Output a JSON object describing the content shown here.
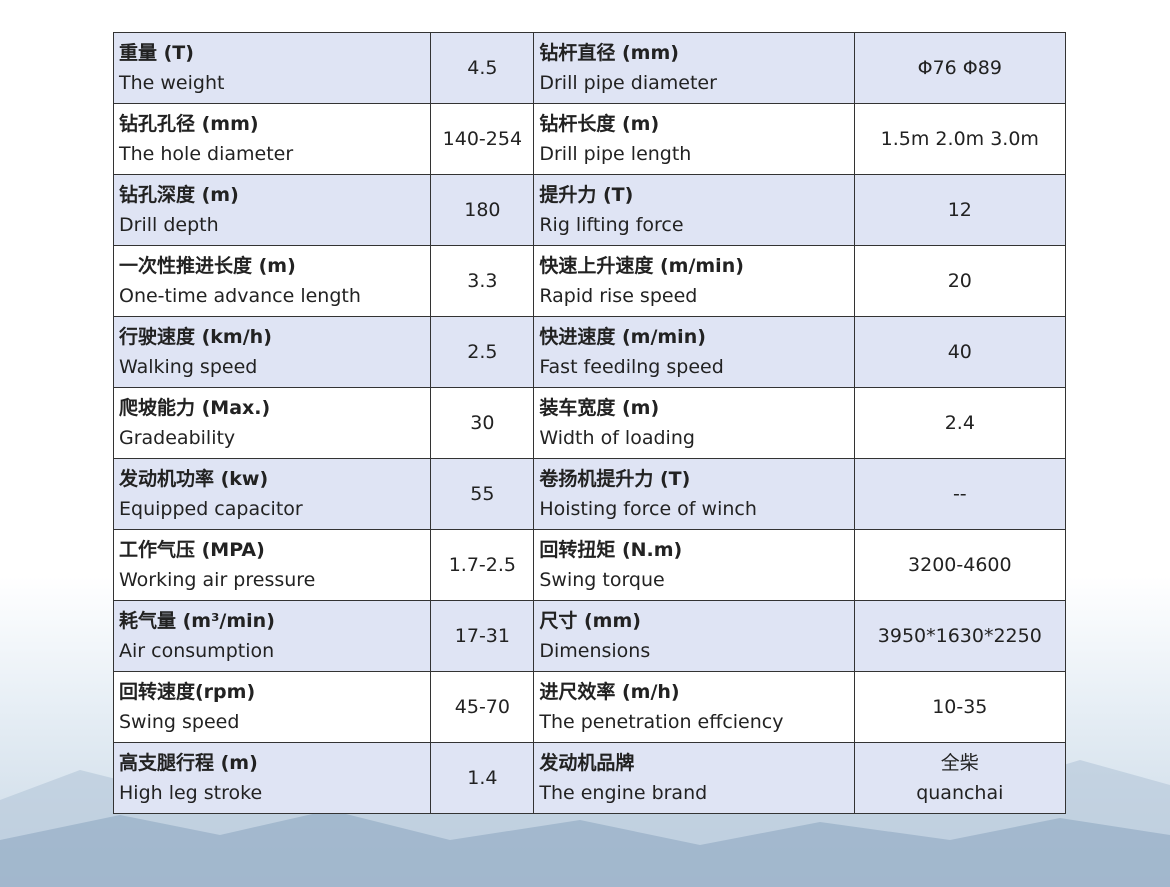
{
  "table": {
    "rows": [
      {
        "left": {
          "cn": "重量 (T)",
          "en": "The weight",
          "value": "4.5"
        },
        "right": {
          "cn": "钻杆直径 (mm)",
          "en": "Drill pipe diameter",
          "value": "Φ76 Φ89"
        }
      },
      {
        "left": {
          "cn": "钻孔孔径 (mm)",
          "en": "The hole diameter",
          "value": "140-254"
        },
        "right": {
          "cn": "钻杆长度 (m)",
          "en": "Drill pipe length",
          "value": "1.5m 2.0m 3.0m"
        }
      },
      {
        "left": {
          "cn": "钻孔深度 (m)",
          "en": "Drill depth",
          "value": "180"
        },
        "right": {
          "cn": "提升力 (T)",
          "en": "Rig lifting force",
          "value": "12"
        }
      },
      {
        "left": {
          "cn": "一次性推进长度 (m)",
          "en": "One-time advance length",
          "value": "3.3"
        },
        "right": {
          "cn": "快速上升速度 (m/min)",
          "en": "Rapid rise speed",
          "value": "20"
        }
      },
      {
        "left": {
          "cn": "行驶速度 (km/h)",
          "en": "Walking speed",
          "value": "2.5"
        },
        "right": {
          "cn": "快进速度 (m/min)",
          "en": "Fast feedilng speed",
          "value": "40"
        }
      },
      {
        "left": {
          "cn": "爬坡能力 (Max.)",
          "en": "Gradeability",
          "value": "30"
        },
        "right": {
          "cn": "装车宽度 (m)",
          "en": "Width of loading",
          "value": "2.4"
        }
      },
      {
        "left": {
          "cn": "发动机功率 (kw)",
          "en": "Equipped capacitor",
          "value": "55"
        },
        "right": {
          "cn": "卷扬机提升力 (T)",
          "en": "Hoisting force of winch",
          "value": "--"
        }
      },
      {
        "left": {
          "cn": "工作气压 (MPA)",
          "en": "Working air pressure",
          "value": "1.7-2.5"
        },
        "right": {
          "cn": "回转扭矩 (N.m)",
          "en": "Swing torque",
          "value": "3200-4600"
        }
      },
      {
        "left": {
          "cn": "耗气量 (m³/min)",
          "en": "Air consumption",
          "value": "17-31"
        },
        "right": {
          "cn": "尺寸 (mm)",
          "en": "Dimensions",
          "value": "3950*1630*2250"
        }
      },
      {
        "left": {
          "cn": "回转速度(rpm)",
          "en": "Swing speed",
          "value": "45-70"
        },
        "right": {
          "cn": "进尺效率 (m/h)",
          "en": "The penetration effciency",
          "value": "10-35"
        }
      },
      {
        "left": {
          "cn": "高支腿行程 (m)",
          "en": "High leg stroke",
          "value": "1.4"
        },
        "right": {
          "cn": "发动机品牌",
          "en": "The engine brand",
          "value": [
            "全柴",
            "quanchai"
          ]
        }
      }
    ]
  }
}
